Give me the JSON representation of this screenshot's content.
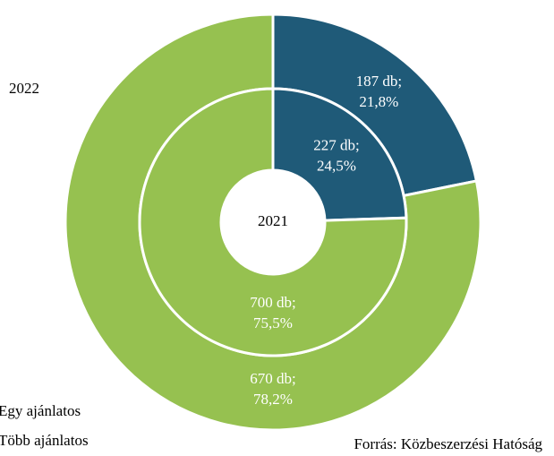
{
  "chart_data": {
    "type": "donut",
    "categories": [
      "Egy ajánlatos",
      "Több ajánlatos"
    ],
    "colors": [
      "#1f5a78",
      "#96c150"
    ],
    "series": [
      {
        "name": "2022",
        "values": [
          187,
          670
        ],
        "value_labels": [
          [
            "187 db;",
            "21,8%"
          ],
          [
            "670 db;",
            "78,2%"
          ]
        ]
      },
      {
        "name": "2021",
        "values": [
          227,
          700
        ],
        "value_labels": [
          [
            "227 db;",
            "24,5%"
          ],
          [
            "700 db;",
            "75,5%"
          ]
        ]
      }
    ],
    "source": "Forrás: Közbeszerzési Hatóság"
  }
}
